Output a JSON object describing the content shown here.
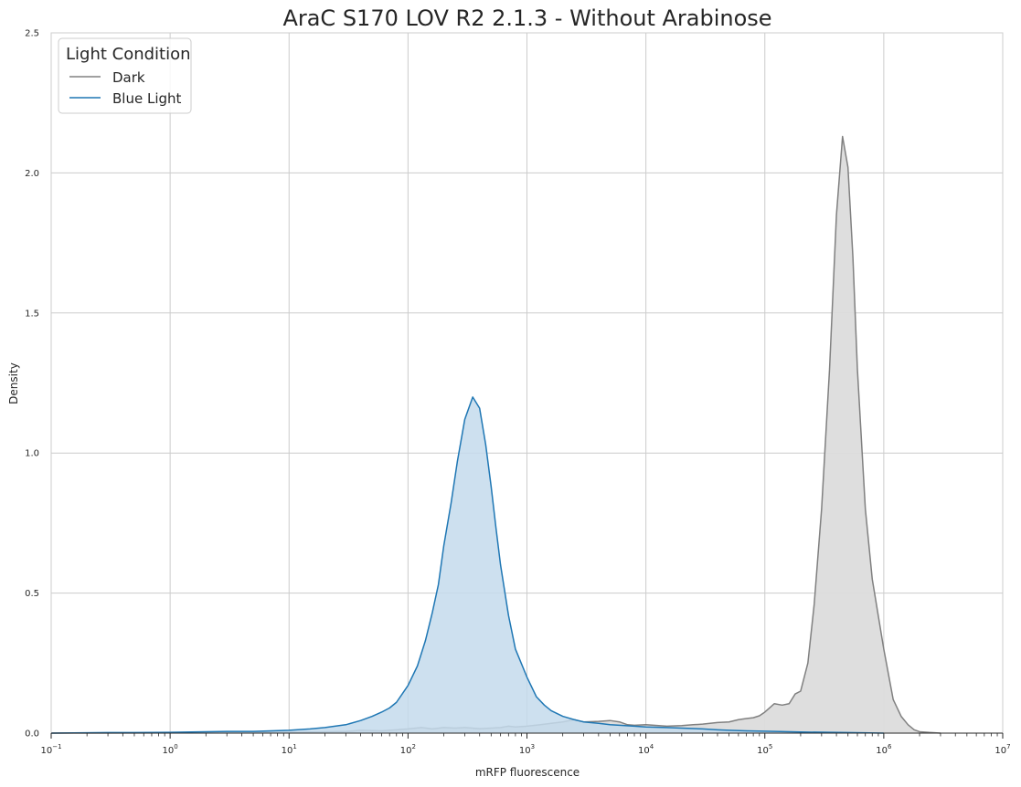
{
  "chart_data": {
    "type": "area",
    "title": "AraC S170 LOV R2 2.1.3 - Without Arabinose",
    "xlabel": "mRFP fluorescence",
    "ylabel": "Density",
    "xscale": "log",
    "xlim": [
      0.1,
      10000000
    ],
    "ylim": [
      0,
      2.5
    ],
    "x_ticks": [
      {
        "base": "10",
        "exp": "−1",
        "value": 0.1
      },
      {
        "base": "10",
        "exp": "0",
        "value": 1
      },
      {
        "base": "10",
        "exp": "1",
        "value": 10
      },
      {
        "base": "10",
        "exp": "2",
        "value": 100
      },
      {
        "base": "10",
        "exp": "3",
        "value": 1000
      },
      {
        "base": "10",
        "exp": "4",
        "value": 10000
      },
      {
        "base": "10",
        "exp": "5",
        "value": 100000
      },
      {
        "base": "10",
        "exp": "6",
        "value": 1000000
      },
      {
        "base": "10",
        "exp": "7",
        "value": 10000000
      }
    ],
    "y_ticks": [
      "0.0",
      "0.5",
      "1.0",
      "1.5",
      "2.0",
      "2.5"
    ],
    "grid": true,
    "legend": {
      "title": "Light Condition",
      "placement": "top-left"
    },
    "series": [
      {
        "name": "Dark",
        "color": "#808080",
        "fill": "#dcdcdc",
        "x": [
          0.1,
          1,
          10,
          20,
          30,
          40,
          60,
          80,
          100,
          130,
          160,
          200,
          250,
          300,
          400,
          500,
          600,
          700,
          800,
          1000,
          1300,
          1600,
          2000,
          2500,
          3000,
          4000,
          5000,
          6000,
          7000,
          8000,
          10000,
          15000,
          20000,
          25000,
          30000,
          40000,
          50000,
          60000,
          70000,
          80000,
          90000,
          100000,
          120000,
          140000,
          160000,
          180000,
          200000,
          230000,
          260000,
          300000,
          350000,
          400000,
          450000,
          500000,
          550000,
          600000,
          700000,
          800000,
          1000000,
          1200000,
          1400000,
          1600000,
          1800000,
          2000000,
          2500000,
          3000000
        ],
        "y": [
          0,
          0.001,
          0.003,
          0.005,
          0.006,
          0.01,
          0.008,
          0.012,
          0.015,
          0.02,
          0.015,
          0.02,
          0.018,
          0.02,
          0.016,
          0.018,
          0.02,
          0.025,
          0.022,
          0.025,
          0.03,
          0.035,
          0.04,
          0.048,
          0.04,
          0.042,
          0.045,
          0.04,
          0.03,
          0.028,
          0.03,
          0.025,
          0.027,
          0.03,
          0.032,
          0.038,
          0.04,
          0.048,
          0.052,
          0.055,
          0.062,
          0.075,
          0.105,
          0.1,
          0.105,
          0.14,
          0.15,
          0.25,
          0.46,
          0.8,
          1.3,
          1.85,
          2.13,
          2.02,
          1.7,
          1.3,
          0.8,
          0.55,
          0.3,
          0.12,
          0.06,
          0.03,
          0.012,
          0.005,
          0.002,
          0
        ]
      },
      {
        "name": "Blue Light",
        "color": "#1f77b4",
        "fill": "#c4daec",
        "x": [
          0.1,
          0.3,
          0.5,
          1,
          3,
          5,
          10,
          15,
          20,
          30,
          40,
          50,
          60,
          70,
          80,
          100,
          120,
          140,
          160,
          180,
          200,
          230,
          260,
          300,
          350,
          400,
          450,
          500,
          550,
          600,
          700,
          800,
          1000,
          1200,
          1400,
          1600,
          2000,
          2500,
          3000,
          4000,
          5000,
          6000,
          8000,
          10000,
          15000,
          20000,
          30000,
          40000,
          50000,
          70000,
          100000,
          200000,
          500000,
          1000000
        ],
        "y": [
          0,
          0.002,
          0.002,
          0.003,
          0.006,
          0.006,
          0.01,
          0.015,
          0.02,
          0.03,
          0.045,
          0.06,
          0.075,
          0.09,
          0.11,
          0.17,
          0.24,
          0.33,
          0.43,
          0.53,
          0.67,
          0.82,
          0.97,
          1.12,
          1.2,
          1.16,
          1.03,
          0.88,
          0.73,
          0.6,
          0.42,
          0.3,
          0.2,
          0.13,
          0.1,
          0.08,
          0.06,
          0.048,
          0.04,
          0.035,
          0.03,
          0.028,
          0.025,
          0.022,
          0.02,
          0.018,
          0.015,
          0.012,
          0.01,
          0.008,
          0.007,
          0.004,
          0.002,
          0
        ]
      }
    ]
  }
}
